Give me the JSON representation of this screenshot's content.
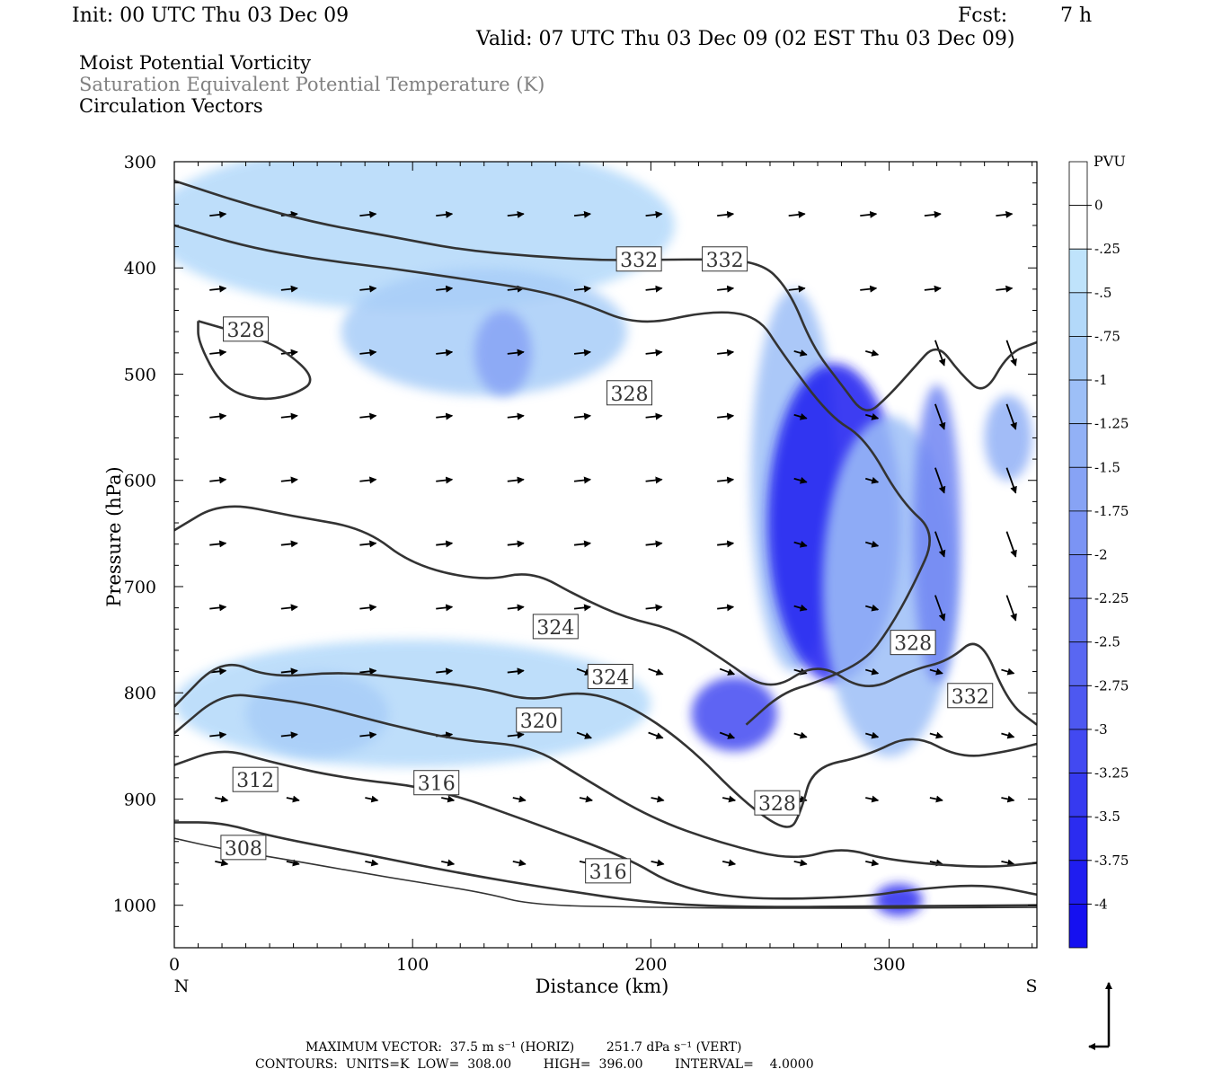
{
  "header": {
    "init": "Init: 00 UTC Thu 03 Dec 09",
    "fcst_label": "Fcst:",
    "fcst_value": "7 h",
    "valid": "Valid: 07 UTC Thu 03 Dec 09 (02 EST Thu 03 Dec 09)"
  },
  "fields": {
    "line1": "Moist Potential Vorticity",
    "line2": "Saturation Equivalent Potential Temperature (K)",
    "line3": "Circulation Vectors"
  },
  "footer": {
    "max_vector": "MAXIMUM VECTOR:  37.5 m s⁻¹ (HORIZ)        251.7 dPa s⁻¹ (VERT)",
    "contours": "CONTOURS:  UNITS=K  LOW=  308.00        HIGH=  396.00        INTERVAL=    4.0000"
  },
  "colors": {
    "contour": "#333333",
    "pv_light": "#bfe3fb",
    "pv_mid": "#8fa8f5",
    "pv_strong": "#1f2bf0"
  },
  "chart_data": {
    "type": "heatmap",
    "xlabel": "Distance (km)",
    "ylabel": "Pressure (hPa)",
    "xlim": [
      0,
      362
    ],
    "ylim": [
      1040,
      300
    ],
    "y_scale": "linear-inverted",
    "x_ticks": [
      0,
      100,
      200,
      300
    ],
    "y_ticks": [
      300,
      400,
      500,
      600,
      700,
      800,
      900,
      1000
    ],
    "x_end_labels": {
      "left": "N",
      "right": "S"
    },
    "colorbar": {
      "title": "PVU",
      "levels": [
        "0",
        "-.25",
        "-.5",
        "-.75",
        "-1",
        "-1.25",
        "-1.5",
        "-1.75",
        "-2",
        "-2.25",
        "-2.5",
        "-2.75",
        "-3",
        "-3.25",
        "-3.5",
        "-3.75",
        "-4"
      ],
      "colors": [
        "#ffffff",
        "#ffffff",
        "#bfe3fb",
        "#b3d9fa",
        "#a8cdf8",
        "#9dbff7",
        "#92b1f6",
        "#87a3f5",
        "#7b94f4",
        "#7085f3",
        "#6476f2",
        "#5967f2",
        "#4d58f1",
        "#4249f1",
        "#363af0",
        "#2b2cf0",
        "#1f1df0",
        "#1510f0"
      ]
    },
    "contour_labels": [
      {
        "text": "332",
        "x": 195,
        "p": 392
      },
      {
        "text": "332",
        "x": 231,
        "p": 392
      },
      {
        "text": "328",
        "x": 30,
        "p": 458
      },
      {
        "text": "328",
        "x": 191,
        "p": 518
      },
      {
        "text": "328",
        "x": 310,
        "p": 753
      },
      {
        "text": "332",
        "x": 334,
        "p": 803
      },
      {
        "text": "324",
        "x": 160,
        "p": 738
      },
      {
        "text": "324",
        "x": 183,
        "p": 785
      },
      {
        "text": "320",
        "x": 153,
        "p": 826
      },
      {
        "text": "316",
        "x": 110,
        "p": 885
      },
      {
        "text": "316",
        "x": 182,
        "p": 968
      },
      {
        "text": "312",
        "x": 34,
        "p": 882
      },
      {
        "text": "308",
        "x": 29,
        "p": 946
      },
      {
        "text": "328",
        "x": 253,
        "p": 904
      }
    ],
    "contours": [
      {
        "value": 308,
        "points": [
          [
            0,
            937
          ],
          [
            20,
            947
          ],
          [
            50,
            958
          ],
          [
            90,
            974
          ],
          [
            130,
            988
          ],
          [
            150,
            1000
          ],
          [
            200,
            1002
          ],
          [
            260,
            1003
          ],
          [
            362,
            1002
          ]
        ]
      },
      {
        "value": 312,
        "points": [
          [
            0,
            922
          ],
          [
            20,
            922
          ],
          [
            40,
            935
          ],
          [
            80,
            952
          ],
          [
            120,
            970
          ],
          [
            160,
            985
          ],
          [
            200,
            998
          ],
          [
            240,
            1002
          ],
          [
            300,
            1001
          ],
          [
            362,
            1000
          ]
        ]
      },
      {
        "value": 316,
        "points": [
          [
            0,
            868
          ],
          [
            20,
            852
          ],
          [
            40,
            865
          ],
          [
            70,
            880
          ],
          [
            110,
            890
          ],
          [
            150,
            922
          ],
          [
            190,
            955
          ],
          [
            210,
            982
          ],
          [
            240,
            995
          ],
          [
            290,
            992
          ],
          [
            310,
            985
          ],
          [
            340,
            980
          ],
          [
            362,
            990
          ]
        ]
      },
      {
        "value": 320,
        "points": [
          [
            0,
            838
          ],
          [
            20,
            800
          ],
          [
            40,
            805
          ],
          [
            60,
            812
          ],
          [
            90,
            830
          ],
          [
            120,
            845
          ],
          [
            150,
            850
          ],
          [
            170,
            878
          ],
          [
            200,
            918
          ],
          [
            230,
            942
          ],
          [
            260,
            958
          ],
          [
            280,
            945
          ],
          [
            300,
            958
          ],
          [
            340,
            965
          ],
          [
            362,
            960
          ]
        ]
      },
      {
        "value": 324,
        "points": [
          [
            0,
            813
          ],
          [
            20,
            767
          ],
          [
            40,
            786
          ],
          [
            70,
            780
          ],
          [
            100,
            787
          ],
          [
            130,
            796
          ],
          [
            150,
            808
          ],
          [
            170,
            798
          ],
          [
            190,
            810
          ],
          [
            215,
            848
          ],
          [
            240,
            905
          ],
          [
            258,
            932
          ],
          [
            263,
            912
          ],
          [
            268,
            870
          ],
          [
            290,
            860
          ],
          [
            310,
            838
          ],
          [
            330,
            862
          ],
          [
            350,
            855
          ],
          [
            362,
            848
          ]
        ]
      },
      {
        "value": 324,
        "points": [
          [
            0,
            647
          ],
          [
            20,
            620
          ],
          [
            50,
            634
          ],
          [
            80,
            645
          ],
          [
            100,
            680
          ],
          [
            130,
            695
          ],
          [
            150,
            685
          ],
          [
            170,
            710
          ],
          [
            190,
            730
          ],
          [
            210,
            740
          ],
          [
            230,
            768
          ],
          [
            250,
            800
          ],
          [
            270,
            770
          ],
          [
            290,
            800
          ],
          [
            310,
            778
          ],
          [
            325,
            770
          ],
          [
            338,
            745
          ],
          [
            350,
            810
          ],
          [
            362,
            830
          ]
        ]
      },
      {
        "value": 328,
        "points": [
          [
            0,
            360
          ],
          [
            30,
            380
          ],
          [
            60,
            392
          ],
          [
            90,
            400
          ],
          [
            120,
            410
          ],
          [
            150,
            420
          ],
          [
            170,
            432
          ],
          [
            195,
            455
          ],
          [
            225,
            440
          ],
          [
            245,
            445
          ],
          [
            255,
            480
          ],
          [
            275,
            540
          ],
          [
            290,
            560
          ],
          [
            305,
            620
          ],
          [
            320,
            650
          ],
          [
            310,
            700
          ],
          [
            300,
            740
          ],
          [
            290,
            770
          ],
          [
            270,
            790
          ],
          [
            255,
            800
          ],
          [
            240,
            830
          ]
        ]
      },
      {
        "value": 328,
        "points": [
          [
            10,
            450
          ],
          [
            30,
            463
          ],
          [
            45,
            475
          ],
          [
            60,
            505
          ],
          [
            50,
            520
          ],
          [
            35,
            525
          ],
          [
            20,
            512
          ],
          [
            10,
            470
          ],
          [
            10,
            450
          ]
        ]
      },
      {
        "value": 332,
        "points": [
          [
            0,
            318
          ],
          [
            30,
            340
          ],
          [
            60,
            358
          ],
          [
            90,
            370
          ],
          [
            120,
            383
          ],
          [
            150,
            389
          ],
          [
            180,
            393
          ],
          [
            210,
            392
          ],
          [
            245,
            392
          ],
          [
            258,
            420
          ],
          [
            268,
            475
          ],
          [
            280,
            510
          ],
          [
            290,
            540
          ],
          [
            300,
            520
          ],
          [
            310,
            495
          ],
          [
            320,
            470
          ],
          [
            330,
            500
          ],
          [
            340,
            520
          ],
          [
            350,
            480
          ],
          [
            362,
            470
          ]
        ]
      }
    ],
    "pv_regions": [
      {
        "level": -0.5,
        "center": [
          100,
          360
        ],
        "radius_km": 110,
        "radius_hpa": 80
      },
      {
        "level": -0.75,
        "center": [
          130,
          460
        ],
        "radius_km": 60,
        "radius_hpa": 60
      },
      {
        "level": -1.5,
        "center": [
          138,
          480
        ],
        "radius_km": 12,
        "radius_hpa": 40
      },
      {
        "level": -0.5,
        "center": [
          100,
          810
        ],
        "radius_km": 100,
        "radius_hpa": 60
      },
      {
        "level": -0.75,
        "center": [
          60,
          820
        ],
        "radius_km": 30,
        "radius_hpa": 40
      },
      {
        "level": -3.0,
        "center": [
          235,
          820
        ],
        "radius_km": 18,
        "radius_hpa": 35
      },
      {
        "level": -1.0,
        "center": [
          260,
          600
        ],
        "radius_km": 18,
        "radius_hpa": 180
      },
      {
        "level": -3.75,
        "center": [
          277,
          640
        ],
        "radius_km": 28,
        "radius_hpa": 150
      },
      {
        "level": -1.0,
        "center": [
          300,
          700
        ],
        "radius_km": 28,
        "radius_hpa": 160
      },
      {
        "level": -2.0,
        "center": [
          320,
          650
        ],
        "radius_km": 10,
        "radius_hpa": 140
      },
      {
        "level": -1.25,
        "center": [
          350,
          560
        ],
        "radius_km": 10,
        "radius_hpa": 40
      },
      {
        "level": -3.5,
        "center": [
          304,
          995
        ],
        "radius_km": 10,
        "radius_hpa": 15
      }
    ],
    "reference_vector": {
      "horizontal": "37.5 m s⁻¹",
      "vertical": "251.7 dPa s⁻¹"
    }
  }
}
